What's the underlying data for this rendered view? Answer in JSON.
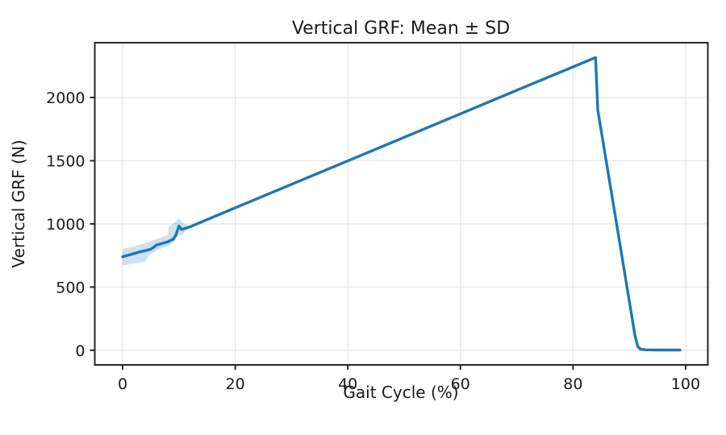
{
  "chart_data": {
    "type": "line",
    "title": "Vertical GRF: Mean ± SD",
    "xlabel": "Gait Cycle (%)",
    "ylabel": "Vertical GRF (N)",
    "xlim": [
      -4.95,
      103.95
    ],
    "ylim": [
      -116,
      2434
    ],
    "xticks": [
      0,
      20,
      40,
      60,
      80,
      100
    ],
    "yticks": [
      0,
      500,
      1000,
      1500,
      2000
    ],
    "grid": true,
    "legend_position": "none",
    "colors": {
      "line": "#1f77b4",
      "band": "#1f77b4",
      "band_alpha": 0.22,
      "grid": "#e7e7e7",
      "spine": "#262626",
      "text": "#1a1a1a",
      "background": "#ffffff"
    },
    "series": [
      {
        "name": "mean",
        "x": [
          0,
          1,
          2,
          3,
          4,
          5,
          5.5,
          6,
          7,
          8,
          9,
          9.5,
          10,
          10.5,
          11,
          12,
          20,
          30,
          40,
          50,
          60,
          70,
          80,
          84,
          84.4,
          86,
          88,
          90,
          91,
          91.5,
          92,
          93,
          95,
          97,
          99
        ],
        "y": [
          740,
          753,
          765,
          778,
          788,
          800,
          815,
          832,
          845,
          858,
          880,
          915,
          983,
          955,
          963,
          978,
          1127,
          1313,
          1499,
          1685,
          1871,
          2057,
          2243,
          2317,
          1900,
          1470,
          930,
          390,
          118,
          30,
          8,
          3,
          2,
          2,
          2
        ]
      }
    ],
    "band": {
      "name": "mean ± sd",
      "x": [
        0,
        2,
        4,
        4.5,
        5,
        6,
        7,
        8,
        8.2,
        9,
        10,
        10.5,
        11,
        11.6,
        12
      ],
      "upper": [
        800,
        822,
        848,
        852,
        862,
        880,
        897,
        912,
        975,
        1005,
        1045,
        1015,
        1002,
        988,
        980
      ],
      "lower": [
        670,
        688,
        700,
        740,
        762,
        790,
        808,
        822,
        828,
        850,
        910,
        912,
        935,
        955,
        972
      ]
    }
  }
}
